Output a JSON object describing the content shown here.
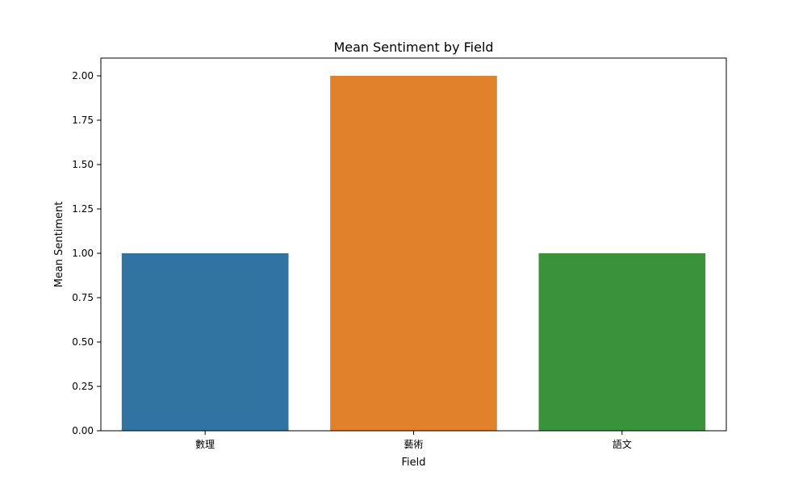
{
  "chart_data": {
    "type": "bar",
    "title": "Mean Sentiment by Field",
    "xlabel": "Field",
    "ylabel": "Mean Sentiment",
    "categories": [
      "數理",
      "藝術",
      "語文"
    ],
    "values": [
      1.0,
      2.0,
      1.0
    ],
    "colors": [
      "#3274a1",
      "#e1812c",
      "#3a923a"
    ],
    "ylim": [
      0,
      2.1
    ],
    "yticks": [
      "0.00",
      "0.25",
      "0.50",
      "0.75",
      "1.00",
      "1.25",
      "1.50",
      "1.75",
      "2.00"
    ],
    "grid": false,
    "legend": "none"
  }
}
